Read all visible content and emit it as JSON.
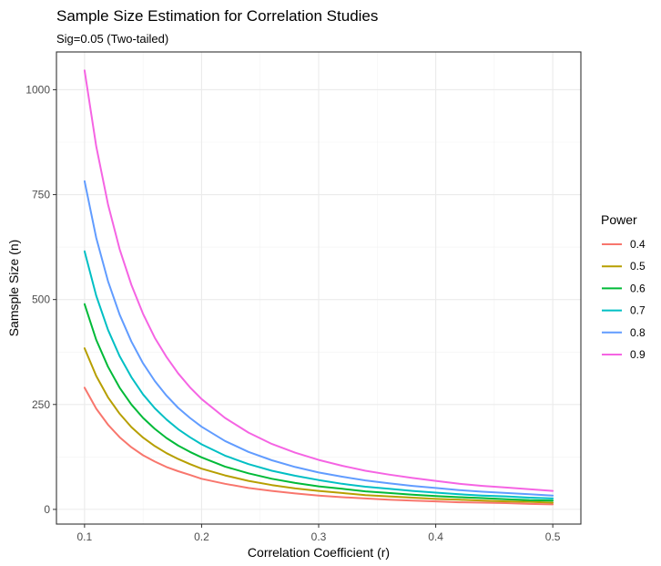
{
  "chart_data": {
    "type": "line",
    "title": "Sample Size Estimation for Correlation Studies",
    "subtitle": "Sig=0.05 (Two-tailed)",
    "xlabel": "Correlation Coefficient (r)",
    "ylabel": "Samsple Size (n)",
    "xlim": [
      0.076,
      0.524
    ],
    "ylim": [
      -35,
      1090
    ],
    "x_ticks": [
      0.1,
      0.2,
      0.3,
      0.4,
      0.5
    ],
    "x_tick_labels": [
      "0.1",
      "0.2",
      "0.3",
      "0.4",
      "0.5"
    ],
    "y_ticks": [
      0,
      250,
      500,
      750,
      1000
    ],
    "y_tick_labels": [
      "0",
      "250",
      "500",
      "750",
      "1000"
    ],
    "grid": true,
    "legend": {
      "title": "Power",
      "position": "right"
    },
    "x": [
      0.1,
      0.11,
      0.12,
      0.13,
      0.14,
      0.15,
      0.16,
      0.17,
      0.18,
      0.19,
      0.2,
      0.22,
      0.24,
      0.26,
      0.28,
      0.3,
      0.32,
      0.34,
      0.36,
      0.38,
      0.4,
      0.42,
      0.44,
      0.46,
      0.48,
      0.5
    ],
    "series": [
      {
        "name": "0.4",
        "color": "#F8766D",
        "values": [
          290,
          240,
          202,
          172,
          148,
          129,
          114,
          101,
          91,
          82,
          73,
          61,
          51,
          44,
          38,
          33,
          29,
          26,
          23,
          21,
          19,
          17,
          16,
          15,
          13,
          12
        ]
      },
      {
        "name": "0.5",
        "color": "#B79F00",
        "values": [
          384,
          318,
          267,
          228,
          196,
          171,
          151,
          134,
          120,
          108,
          97,
          81,
          68,
          58,
          50,
          44,
          39,
          34,
          31,
          28,
          25,
          23,
          21,
          19,
          18,
          16
        ]
      },
      {
        "name": "0.6",
        "color": "#00BA38",
        "values": [
          489,
          404,
          340,
          290,
          250,
          218,
          192,
          170,
          152,
          137,
          124,
          102,
          86,
          73,
          63,
          55,
          49,
          43,
          39,
          35,
          32,
          29,
          27,
          24,
          22,
          21
        ]
      },
      {
        "name": "0.7",
        "color": "#00BFC4",
        "values": [
          615,
          509,
          428,
          365,
          315,
          274,
          241,
          214,
          191,
          172,
          155,
          128,
          108,
          92,
          80,
          70,
          61,
          54,
          49,
          44,
          40,
          36,
          33,
          31,
          28,
          26
        ]
      },
      {
        "name": "0.8",
        "color": "#619CFF",
        "values": [
          782,
          647,
          544,
          464,
          400,
          348,
          306,
          271,
          242,
          218,
          197,
          163,
          137,
          117,
          101,
          88,
          78,
          69,
          62,
          56,
          51,
          46,
          42,
          39,
          36,
          33
        ]
      },
      {
        "name": "0.9",
        "color": "#F564E3",
        "values": [
          1046,
          865,
          727,
          620,
          535,
          466,
          409,
          363,
          324,
          291,
          263,
          218,
          183,
          156,
          135,
          118,
          104,
          92,
          83,
          75,
          68,
          61,
          56,
          52,
          48,
          44
        ]
      }
    ]
  }
}
